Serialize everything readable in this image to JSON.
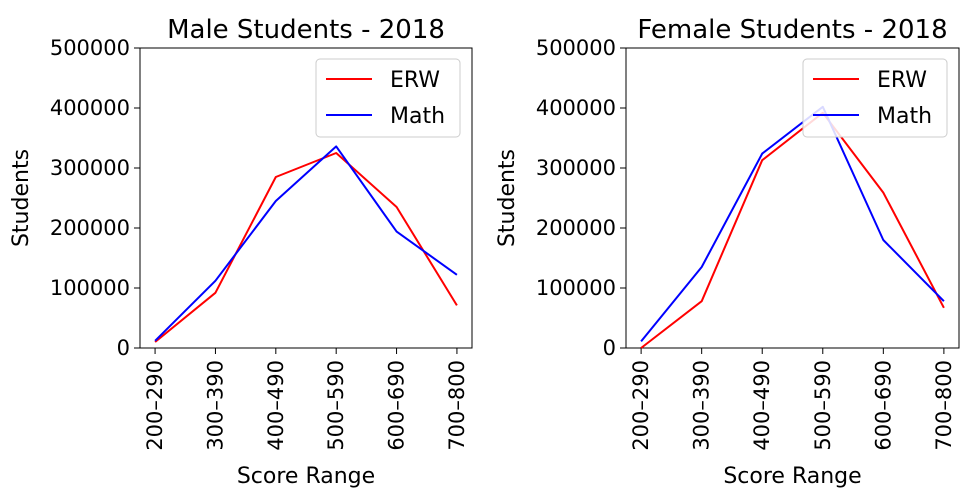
{
  "chart_data": [
    {
      "type": "line",
      "title": "Male Students - 2018",
      "xlabel": "Score Range",
      "ylabel": "Students",
      "categories": [
        "200–290",
        "300–390",
        "400–490",
        "500–590",
        "600–690",
        "700–800"
      ],
      "ylim": [
        0,
        500000
      ],
      "yticks": [
        "0",
        "100000",
        "200000",
        "300000",
        "400000",
        "500000"
      ],
      "yticks_values": [
        0,
        100000,
        200000,
        300000,
        400000,
        500000
      ],
      "legend": "top-right",
      "grid": false,
      "series": [
        {
          "name": "ERW",
          "color": "#ff0000",
          "values": [
            10000,
            92000,
            285000,
            325000,
            235000,
            71000
          ]
        },
        {
          "name": "Math",
          "color": "#0000ff",
          "values": [
            12000,
            112000,
            245000,
            336000,
            194000,
            122000
          ]
        }
      ]
    },
    {
      "type": "line",
      "title": "Female Students - 2018",
      "xlabel": "Score Range",
      "ylabel": "Students",
      "categories": [
        "200–290",
        "300–390",
        "400–490",
        "500–590",
        "600–690",
        "700–800"
      ],
      "ylim": [
        0,
        500000
      ],
      "yticks": [
        "0",
        "100000",
        "200000",
        "300000",
        "400000",
        "500000"
      ],
      "yticks_values": [
        0,
        100000,
        200000,
        300000,
        400000,
        500000
      ],
      "legend": "top-right",
      "grid": false,
      "series": [
        {
          "name": "ERW",
          "color": "#ff0000",
          "values": [
            0,
            78000,
            313000,
            392000,
            259000,
            67000
          ]
        },
        {
          "name": "Math",
          "color": "#0000ff",
          "values": [
            11000,
            135000,
            324000,
            402000,
            180000,
            78000
          ]
        }
      ]
    }
  ]
}
